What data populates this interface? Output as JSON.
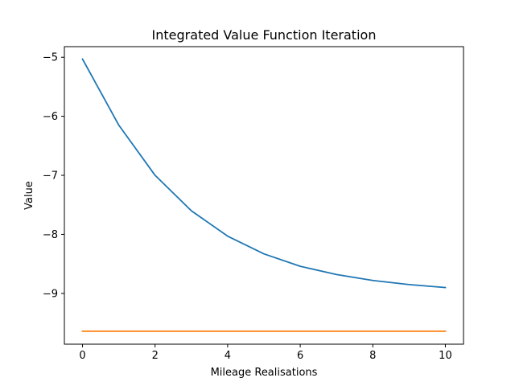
{
  "chart_data": {
    "type": "line",
    "title": "Integrated Value Function Iteration",
    "xlabel": "Mileage Realisations",
    "ylabel": "Value",
    "xlim": [
      -0.5,
      10.5
    ],
    "ylim": [
      -9.86,
      -4.82
    ],
    "xticks": [
      0,
      2,
      4,
      6,
      8,
      10
    ],
    "yticks": [
      -5,
      -6,
      -7,
      -8,
      -9
    ],
    "ytick_labels": [
      "−5",
      "−6",
      "−7",
      "−8",
      "−9"
    ],
    "grid": false,
    "series": [
      {
        "color": "#1f77b4",
        "x": [
          0,
          1,
          2,
          3,
          4,
          5,
          6,
          7,
          8,
          9,
          10
        ],
        "y": [
          -5.03,
          -6.15,
          -7.0,
          -7.6,
          -8.03,
          -8.33,
          -8.54,
          -8.68,
          -8.78,
          -8.85,
          -8.9
        ]
      },
      {
        "color": "#ff7f0e",
        "x": [
          0,
          1,
          2,
          3,
          4,
          5,
          6,
          7,
          8,
          9,
          10
        ],
        "y": [
          -9.64,
          -9.64,
          -9.64,
          -9.64,
          -9.64,
          -9.64,
          -9.64,
          -9.64,
          -9.64,
          -9.64,
          -9.64
        ]
      }
    ]
  }
}
